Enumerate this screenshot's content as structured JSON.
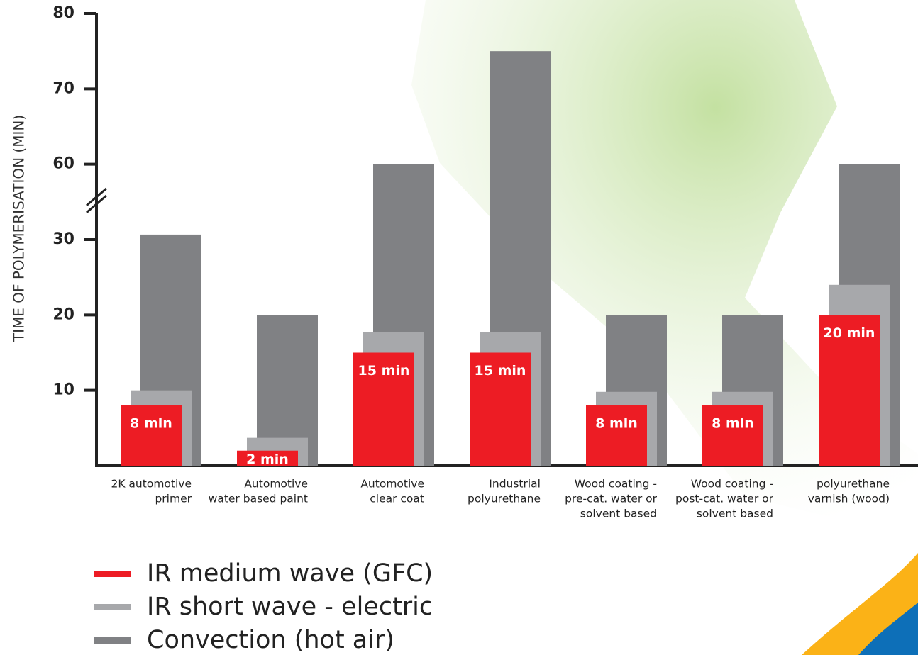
{
  "chart_data": {
    "type": "bar",
    "y_label": "TIME OF POLYMERISATION (MIN)",
    "categories": [
      [
        "2K automotive",
        "primer"
      ],
      [
        "Automotive",
        "water based paint"
      ],
      [
        "Automotive",
        "clear coat"
      ],
      [
        "Industrial",
        "polyurethane"
      ],
      [
        "Wood coating -",
        "pre-cat. water or",
        "solvent based"
      ],
      [
        "Wood coating -",
        "post-cat. water or",
        "solvent based"
      ],
      [
        "polyurethane",
        "varnish (wood)"
      ]
    ],
    "series": [
      {
        "name": "IR medium wave (GFC)",
        "color": "#ed1c24",
        "values": [
          8,
          2,
          15,
          15,
          8,
          8,
          20
        ],
        "value_labels": [
          "8 min",
          "2 min",
          "15 min",
          "15 min",
          "8 min",
          "8 min",
          "20 min"
        ]
      },
      {
        "name": "IR short wave - electric",
        "color": "#a7a8ab",
        "values": [
          10,
          3.7,
          17.7,
          17.7,
          9.8,
          9.8,
          24
        ]
      },
      {
        "name": "Convection (hot air)",
        "color": "#808184",
        "values": [
          32,
          20,
          60,
          75,
          20,
          20,
          60
        ]
      }
    ],
    "ylim": [
      0,
      80
    ],
    "yticks": [
      10,
      20,
      30,
      60,
      70,
      80
    ],
    "axis_break": [
      30,
      60
    ]
  }
}
